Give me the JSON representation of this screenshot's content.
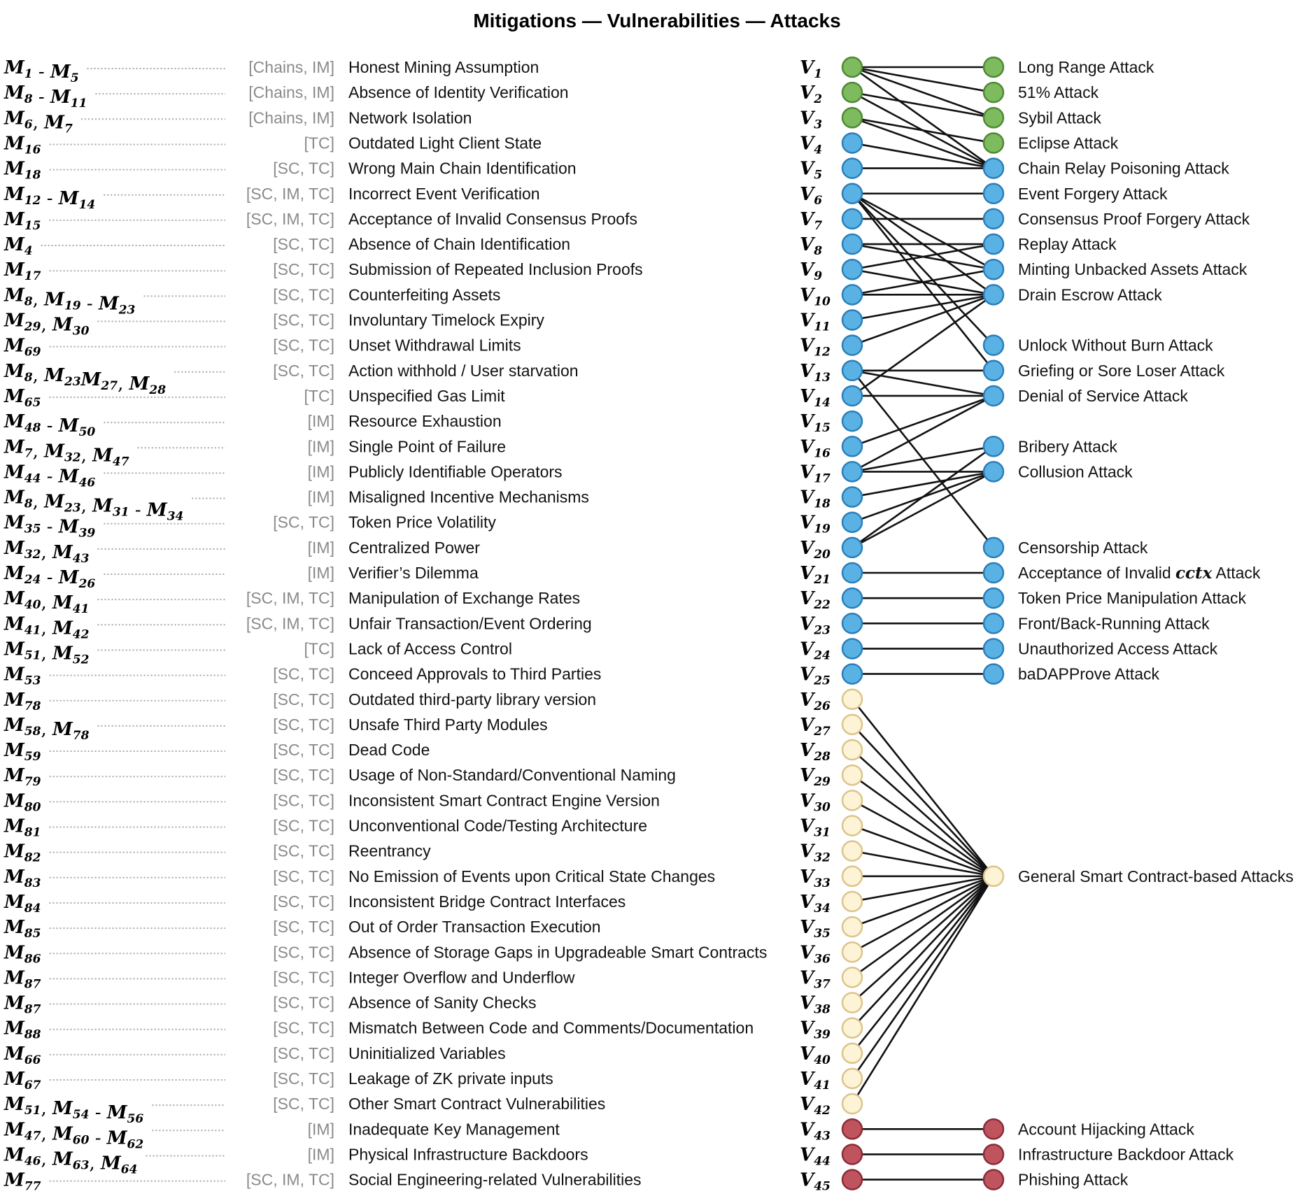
{
  "title": "Mitigations — Vulnerabilities — Attacks",
  "colors": {
    "green": "#7dbb5e",
    "green_stroke": "#4e8a35",
    "blue": "#5ab2e4",
    "blue_stroke": "#2a7fba",
    "yellow": "#fdf3d6",
    "yellow_stroke": "#dcc48a",
    "red": "#c0545e",
    "red_stroke": "#8a2d36",
    "edge": "#111111"
  },
  "rows": [
    {
      "mit": [
        [
          "M",
          "1"
        ],
        [
          " - ",
          ""
        ],
        [
          "M",
          "5"
        ]
      ],
      "tag": "[Chains, IM]",
      "name": "Honest Mining Assumption",
      "v": "1",
      "color": "green"
    },
    {
      "mit": [
        [
          "M",
          "8"
        ],
        [
          " - ",
          ""
        ],
        [
          "M",
          "11"
        ]
      ],
      "tag": "[Chains, IM]",
      "name": "Absence of Identity Verification",
      "v": "2",
      "color": "green"
    },
    {
      "mit": [
        [
          "M",
          "6"
        ],
        [
          ", ",
          ""
        ],
        [
          "M",
          "7"
        ]
      ],
      "tag": "[Chains, IM]",
      "name": "Network Isolation",
      "v": "3",
      "color": "green"
    },
    {
      "mit": [
        [
          "M",
          "16"
        ]
      ],
      "tag": "[TC]",
      "name": "Outdated Light Client State",
      "v": "4",
      "color": "blue"
    },
    {
      "mit": [
        [
          "M",
          "18"
        ]
      ],
      "tag": "[SC, TC]",
      "name": "Wrong Main Chain Identification",
      "v": "5",
      "color": "blue"
    },
    {
      "mit": [
        [
          "M",
          "12"
        ],
        [
          " - ",
          ""
        ],
        [
          "M",
          "14"
        ]
      ],
      "tag": "[SC, IM, TC]",
      "name": "Incorrect Event Verification",
      "v": "6",
      "color": "blue"
    },
    {
      "mit": [
        [
          "M",
          "15"
        ]
      ],
      "tag": "[SC, IM, TC]",
      "name": "Acceptance of Invalid Consensus Proofs",
      "v": "7",
      "color": "blue"
    },
    {
      "mit": [
        [
          "M",
          "4"
        ]
      ],
      "tag": "[SC, TC]",
      "name": "Absence of Chain Identification",
      "v": "8",
      "color": "blue"
    },
    {
      "mit": [
        [
          "M",
          "17"
        ]
      ],
      "tag": "[SC, TC]",
      "name": "Submission of Repeated Inclusion Proofs",
      "v": "9",
      "color": "blue"
    },
    {
      "mit": [
        [
          "M",
          "8"
        ],
        [
          ", ",
          ""
        ],
        [
          "M",
          "19"
        ],
        [
          " - ",
          ""
        ],
        [
          "M",
          "23"
        ]
      ],
      "tag": "[SC, TC]",
      "name": "Counterfeiting Assets",
      "v": "10",
      "color": "blue"
    },
    {
      "mit": [
        [
          "M",
          "29"
        ],
        [
          ", ",
          ""
        ],
        [
          "M",
          "30"
        ]
      ],
      "tag": "[SC, TC]",
      "name": "Involuntary Timelock Expiry",
      "v": "11",
      "color": "blue"
    },
    {
      "mit": [
        [
          "M",
          "69"
        ]
      ],
      "tag": "[SC, TC]",
      "name": "Unset Withdrawal Limits",
      "v": "12",
      "color": "blue"
    },
    {
      "mit": [
        [
          "M",
          "8"
        ],
        [
          ", ",
          ""
        ],
        [
          "M",
          "23"
        ],
        [
          "M",
          "27"
        ],
        [
          ", ",
          ""
        ],
        [
          "M",
          "28"
        ]
      ],
      "tag": "[SC, TC]",
      "name": "Action withhold / User starvation",
      "v": "13",
      "color": "blue"
    },
    {
      "mit": [
        [
          "M",
          "65"
        ]
      ],
      "tag": "[TC]",
      "name": "Unspecified Gas Limit",
      "v": "14",
      "color": "blue"
    },
    {
      "mit": [
        [
          "M",
          "48"
        ],
        [
          " - ",
          ""
        ],
        [
          "M",
          "50"
        ]
      ],
      "tag": "[IM]",
      "name": "Resource Exhaustion",
      "v": "15",
      "color": "blue"
    },
    {
      "mit": [
        [
          "M",
          "7"
        ],
        [
          ", ",
          ""
        ],
        [
          "M",
          "32"
        ],
        [
          ", ",
          ""
        ],
        [
          "M",
          "47"
        ]
      ],
      "tag": "[IM]",
      "name": "Single Point of Failure",
      "v": "16",
      "color": "blue"
    },
    {
      "mit": [
        [
          "M",
          "44"
        ],
        [
          " - ",
          ""
        ],
        [
          "M",
          "46"
        ]
      ],
      "tag": "[IM]",
      "name": "Publicly Identifiable Operators",
      "v": "17",
      "color": "blue"
    },
    {
      "mit": [
        [
          "M",
          "8"
        ],
        [
          ", ",
          ""
        ],
        [
          "M",
          "23"
        ],
        [
          ", ",
          ""
        ],
        [
          "M",
          "31"
        ],
        [
          " - ",
          ""
        ],
        [
          "M",
          "34"
        ]
      ],
      "tag": "[IM]",
      "name": "Misaligned Incentive Mechanisms",
      "v": "18",
      "color": "blue"
    },
    {
      "mit": [
        [
          "M",
          "35"
        ],
        [
          " - ",
          ""
        ],
        [
          "M",
          "39"
        ]
      ],
      "tag": "[SC, TC]",
      "name": "Token Price Volatility",
      "v": "19",
      "color": "blue"
    },
    {
      "mit": [
        [
          "M",
          "32"
        ],
        [
          ", ",
          ""
        ],
        [
          "M",
          "43"
        ]
      ],
      "tag": "[IM]",
      "name": "Centralized Power",
      "v": "20",
      "color": "blue"
    },
    {
      "mit": [
        [
          "M",
          "24"
        ],
        [
          " - ",
          ""
        ],
        [
          "M",
          "26"
        ]
      ],
      "tag": "[IM]",
      "name": "Verifier’s Dilemma",
      "v": "21",
      "color": "blue"
    },
    {
      "mit": [
        [
          "M",
          "40"
        ],
        [
          ", ",
          ""
        ],
        [
          "M",
          "41"
        ]
      ],
      "tag": "[SC, IM, TC]",
      "name": "Manipulation of Exchange Rates",
      "v": "22",
      "color": "blue"
    },
    {
      "mit": [
        [
          "M",
          "41"
        ],
        [
          ", ",
          ""
        ],
        [
          "M",
          "42"
        ]
      ],
      "tag": "[SC, IM, TC]",
      "name": "Unfair Transaction/Event Ordering",
      "v": "23",
      "color": "blue"
    },
    {
      "mit": [
        [
          "M",
          "51"
        ],
        [
          ", ",
          ""
        ],
        [
          "M",
          "52"
        ]
      ],
      "tag": "[TC]",
      "name": "Lack of Access Control",
      "v": "24",
      "color": "blue"
    },
    {
      "mit": [
        [
          "M",
          "53"
        ]
      ],
      "tag": "[SC, TC]",
      "name": "Conceed Approvals to Third Parties",
      "v": "25",
      "color": "blue"
    },
    {
      "mit": [
        [
          "M",
          "78"
        ]
      ],
      "tag": "[SC, TC]",
      "name": "Outdated third-party library version",
      "v": "26",
      "color": "yellow"
    },
    {
      "mit": [
        [
          "M",
          "58"
        ],
        [
          ", ",
          ""
        ],
        [
          "M",
          "78"
        ]
      ],
      "tag": "[SC, TC]",
      "name": "Unsafe Third Party Modules",
      "v": "27",
      "color": "yellow"
    },
    {
      "mit": [
        [
          "M",
          "59"
        ]
      ],
      "tag": "[SC, TC]",
      "name": "Dead Code",
      "v": "28",
      "color": "yellow"
    },
    {
      "mit": [
        [
          "M",
          "79"
        ]
      ],
      "tag": "[SC, TC]",
      "name": "Usage of Non-Standard/Conventional Naming",
      "v": "29",
      "color": "yellow"
    },
    {
      "mit": [
        [
          "M",
          "80"
        ]
      ],
      "tag": "[SC, TC]",
      "name": "Inconsistent Smart Contract Engine Version",
      "v": "30",
      "color": "yellow"
    },
    {
      "mit": [
        [
          "M",
          "81"
        ]
      ],
      "tag": "[SC, TC]",
      "name": "Unconventional Code/Testing Architecture",
      "v": "31",
      "color": "yellow"
    },
    {
      "mit": [
        [
          "M",
          "82"
        ]
      ],
      "tag": "[SC, TC]",
      "name": "Reentrancy",
      "v": "32",
      "color": "yellow"
    },
    {
      "mit": [
        [
          "M",
          "83"
        ]
      ],
      "tag": "[SC, TC]",
      "name": "No Emission of Events upon Critical State Changes",
      "v": "33",
      "color": "yellow"
    },
    {
      "mit": [
        [
          "M",
          "84"
        ]
      ],
      "tag": "[SC, TC]",
      "name": "Inconsistent Bridge Contract Interfaces",
      "v": "34",
      "color": "yellow"
    },
    {
      "mit": [
        [
          "M",
          "85"
        ]
      ],
      "tag": "[SC, TC]",
      "name": "Out of Order Transaction Execution",
      "v": "35",
      "color": "yellow"
    },
    {
      "mit": [
        [
          "M",
          "86"
        ]
      ],
      "tag": "[SC, TC]",
      "name": "Absence of Storage Gaps in Upgradeable Smart Contracts",
      "v": "36",
      "color": "yellow"
    },
    {
      "mit": [
        [
          "M",
          "87"
        ]
      ],
      "tag": "[SC, TC]",
      "name": "Integer Overflow and Underflow",
      "v": "37",
      "color": "yellow"
    },
    {
      "mit": [
        [
          "M",
          "87"
        ]
      ],
      "tag": "[SC, TC]",
      "name": "Absence of Sanity Checks",
      "v": "38",
      "color": "yellow"
    },
    {
      "mit": [
        [
          "M",
          "88"
        ]
      ],
      "tag": "[SC, TC]",
      "name": "Mismatch Between Code and Comments/Documentation",
      "v": "39",
      "color": "yellow"
    },
    {
      "mit": [
        [
          "M",
          "66"
        ]
      ],
      "tag": "[SC, TC]",
      "name": "Uninitialized Variables",
      "v": "40",
      "color": "yellow"
    },
    {
      "mit": [
        [
          "M",
          "67"
        ]
      ],
      "tag": "[SC, TC]",
      "name": "Leakage of ZK private inputs",
      "v": "41",
      "color": "yellow"
    },
    {
      "mit": [
        [
          "M",
          "51"
        ],
        [
          ", ",
          ""
        ],
        [
          "M",
          "54"
        ],
        [
          " - ",
          ""
        ],
        [
          "M",
          "56"
        ]
      ],
      "tag": "[SC, TC]",
      "name": "Other Smart Contract Vulnerabilities",
      "v": "42",
      "color": "yellow"
    },
    {
      "mit": [
        [
          "M",
          "47"
        ],
        [
          ", ",
          ""
        ],
        [
          "M",
          "60"
        ],
        [
          " - ",
          ""
        ],
        [
          "M",
          "62"
        ]
      ],
      "tag": "[IM]",
      "name": "Inadequate Key Management",
      "v": "43",
      "color": "red"
    },
    {
      "mit": [
        [
          "M",
          "46"
        ],
        [
          ", ",
          ""
        ],
        [
          "M",
          "63"
        ],
        [
          ", ",
          ""
        ],
        [
          "M",
          "64"
        ]
      ],
      "tag": "[IM]",
      "name": "Physical Infrastructure Backdoors",
      "v": "44",
      "color": "red"
    },
    {
      "mit": [
        [
          "M",
          "77"
        ]
      ],
      "tag": "[SC, IM, TC]",
      "name": "Social Engineering-related Vulnerabilities",
      "v": "45",
      "color": "red"
    }
  ],
  "attacks": [
    {
      "row": 0,
      "name": "Long Range Attack",
      "color": "green"
    },
    {
      "row": 1,
      "name": "51% Attack",
      "color": "green"
    },
    {
      "row": 2,
      "name": "Sybil Attack",
      "color": "green"
    },
    {
      "row": 3,
      "name": "Eclipse Attack",
      "color": "green"
    },
    {
      "row": 4,
      "name": "Chain Relay Poisoning Attack",
      "color": "blue"
    },
    {
      "row": 5,
      "name": "Event Forgery Attack",
      "color": "blue"
    },
    {
      "row": 6,
      "name": "Consensus Proof Forgery Attack",
      "color": "blue"
    },
    {
      "row": 7,
      "name": "Replay Attack",
      "color": "blue"
    },
    {
      "row": 8,
      "name": "Minting Unbacked Assets Attack",
      "color": "blue"
    },
    {
      "row": 9,
      "name": "Drain Escrow Attack",
      "color": "blue"
    },
    {
      "row": 11,
      "name": "Unlock Without Burn Attack",
      "color": "blue"
    },
    {
      "row": 12,
      "name": "Griefing or Sore Loser Attack",
      "color": "blue"
    },
    {
      "row": 13,
      "name": "Denial of Service Attack",
      "color": "blue"
    },
    {
      "row": 15,
      "name": "Bribery Attack",
      "color": "blue"
    },
    {
      "row": 16,
      "name": "Collusion Attack",
      "color": "blue"
    },
    {
      "row": 19,
      "name": "Censorship Attack",
      "color": "blue"
    },
    {
      "row": 20,
      "name": "Acceptance of Invalid ",
      "emph": "cctx",
      "tail": " Attack",
      "color": "blue"
    },
    {
      "row": 21,
      "name": "Token Price Manipulation Attack",
      "color": "blue"
    },
    {
      "row": 22,
      "name": "Front/Back-Running Attack",
      "color": "blue"
    },
    {
      "row": 23,
      "name": "Unauthorized Access Attack",
      "color": "blue"
    },
    {
      "row": 24,
      "name": "baDAPProve Attack",
      "color": "blue"
    },
    {
      "row": 32,
      "name": "General Smart Contract-based Attacks",
      "color": "yellow"
    },
    {
      "row": 42,
      "name": "Account Hijacking Attack",
      "color": "red"
    },
    {
      "row": 43,
      "name": "Infrastructure Backdoor Attack",
      "color": "red"
    },
    {
      "row": 44,
      "name": "Phishing Attack",
      "color": "red"
    }
  ],
  "edges": [
    [
      0,
      0
    ],
    [
      0,
      1
    ],
    [
      0,
      2
    ],
    [
      0,
      4
    ],
    [
      1,
      2
    ],
    [
      1,
      4
    ],
    [
      2,
      3
    ],
    [
      2,
      4
    ],
    [
      3,
      4
    ],
    [
      4,
      4
    ],
    [
      5,
      5
    ],
    [
      5,
      8
    ],
    [
      5,
      9
    ],
    [
      5,
      11
    ],
    [
      5,
      12
    ],
    [
      6,
      6
    ],
    [
      7,
      7
    ],
    [
      7,
      8
    ],
    [
      8,
      7
    ],
    [
      8,
      9
    ],
    [
      9,
      8
    ],
    [
      9,
      9
    ],
    [
      10,
      9
    ],
    [
      11,
      9
    ],
    [
      12,
      12
    ],
    [
      12,
      13
    ],
    [
      12,
      19
    ],
    [
      13,
      9
    ],
    [
      13,
      13
    ],
    [
      15,
      13
    ],
    [
      16,
      13
    ],
    [
      16,
      15
    ],
    [
      16,
      16
    ],
    [
      17,
      16
    ],
    [
      18,
      16
    ],
    [
      19,
      15
    ],
    [
      19,
      16
    ],
    [
      20,
      20
    ],
    [
      21,
      21
    ],
    [
      22,
      22
    ],
    [
      23,
      23
    ],
    [
      24,
      24
    ],
    [
      25,
      32
    ],
    [
      26,
      32
    ],
    [
      27,
      32
    ],
    [
      28,
      32
    ],
    [
      29,
      32
    ],
    [
      30,
      32
    ],
    [
      31,
      32
    ],
    [
      32,
      32
    ],
    [
      33,
      32
    ],
    [
      34,
      32
    ],
    [
      35,
      32
    ],
    [
      36,
      32
    ],
    [
      37,
      32
    ],
    [
      38,
      32
    ],
    [
      39,
      32
    ],
    [
      40,
      32
    ],
    [
      41,
      32
    ],
    [
      42,
      42
    ],
    [
      43,
      43
    ],
    [
      44,
      44
    ]
  ]
}
